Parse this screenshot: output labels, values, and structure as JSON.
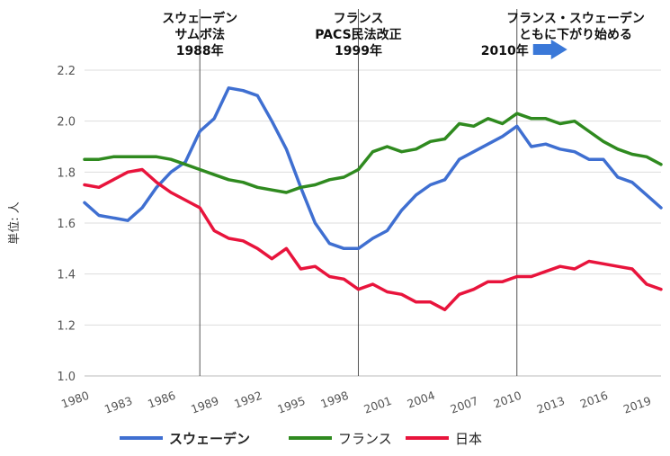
{
  "chart_data": {
    "type": "line",
    "ylabel": "単位: 人",
    "ylim": [
      1.0,
      2.2
    ],
    "yticks": [
      "1.0",
      "1.2",
      "1.4",
      "1.6",
      "1.8",
      "2.0",
      "2.2"
    ],
    "xlim": [
      1980,
      2020
    ],
    "xticks": [
      "1980",
      "1983",
      "1986",
      "1989",
      "1992",
      "1995",
      "1998",
      "2001",
      "2004",
      "2007",
      "2010",
      "2013",
      "2016",
      "2019"
    ],
    "grid": "horizontal",
    "legend": "bottom",
    "x": [
      1980,
      1981,
      1982,
      1983,
      1984,
      1985,
      1986,
      1987,
      1988,
      1989,
      1990,
      1991,
      1992,
      1993,
      1994,
      1995,
      1996,
      1997,
      1998,
      1999,
      2000,
      2001,
      2002,
      2003,
      2004,
      2005,
      2006,
      2007,
      2008,
      2009,
      2010,
      2011,
      2012,
      2013,
      2014,
      2015,
      2016,
      2017,
      2018,
      2019,
      2020
    ],
    "series": [
      {
        "name": "スウェーデン",
        "color": "#3f6fd1",
        "values": [
          1.68,
          1.63,
          1.62,
          1.61,
          1.66,
          1.74,
          1.8,
          1.84,
          1.96,
          2.01,
          2.13,
          2.12,
          2.1,
          2.0,
          1.89,
          1.74,
          1.6,
          1.52,
          1.5,
          1.5,
          1.54,
          1.57,
          1.65,
          1.71,
          1.75,
          1.77,
          1.85,
          1.88,
          1.91,
          1.94,
          1.98,
          1.9,
          1.91,
          1.89,
          1.88,
          1.85,
          1.85,
          1.78,
          1.76,
          1.71,
          1.66
        ]
      },
      {
        "name": "フランス",
        "color": "#2f8a1f",
        "values": [
          1.85,
          1.85,
          1.86,
          1.86,
          1.86,
          1.86,
          1.85,
          1.83,
          1.81,
          1.79,
          1.77,
          1.76,
          1.74,
          1.73,
          1.72,
          1.74,
          1.75,
          1.77,
          1.78,
          1.81,
          1.88,
          1.9,
          1.88,
          1.89,
          1.92,
          1.93,
          1.99,
          1.98,
          2.01,
          1.99,
          2.03,
          2.01,
          2.01,
          1.99,
          2.0,
          1.96,
          1.92,
          1.89,
          1.87,
          1.86,
          1.83
        ]
      },
      {
        "name": "日本",
        "color": "#e8143c",
        "values": [
          1.75,
          1.74,
          1.77,
          1.8,
          1.81,
          1.76,
          1.72,
          1.69,
          1.66,
          1.57,
          1.54,
          1.53,
          1.5,
          1.46,
          1.5,
          1.42,
          1.43,
          1.39,
          1.38,
          1.34,
          1.36,
          1.33,
          1.32,
          1.29,
          1.29,
          1.26,
          1.32,
          1.34,
          1.37,
          1.37,
          1.39,
          1.39,
          1.41,
          1.43,
          1.42,
          1.45,
          1.44,
          1.43,
          1.42,
          1.36,
          1.34
        ]
      }
    ],
    "annotations": [
      {
        "year": 1988,
        "lines": [
          "スウェーデン",
          "サムボ法",
          "1988年"
        ]
      },
      {
        "year": 1999,
        "lines": [
          "フランス",
          "PACS民法改正",
          "1999年"
        ]
      },
      {
        "year": 2010,
        "lines": [
          "フランス・スウェーデン",
          "ともに下がり始める",
          "2010年"
        ]
      }
    ]
  }
}
